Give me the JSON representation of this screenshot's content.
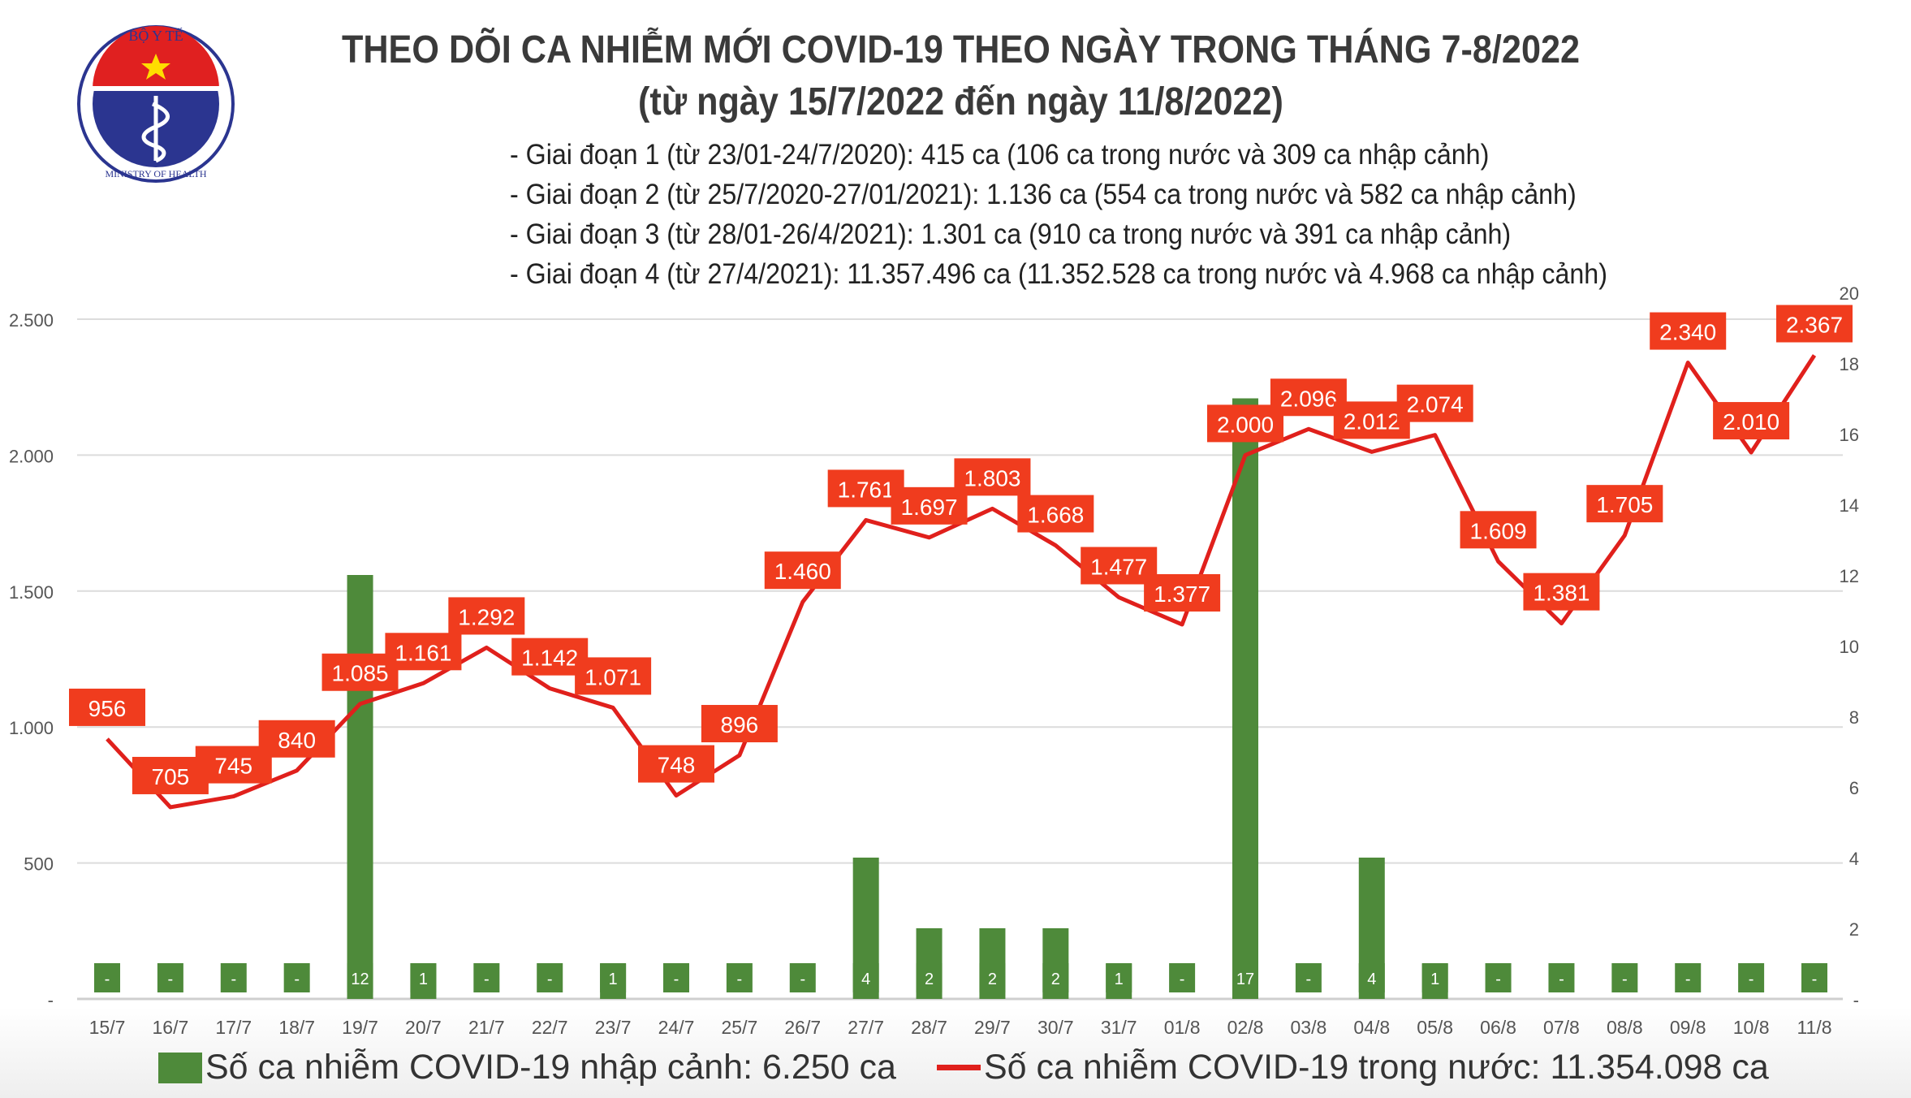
{
  "logo": {
    "text_top": "BỘ Y TẾ",
    "text_bottom": "MINISTRY OF HEALTH"
  },
  "title": "THEO DÕI CA NHIỄM MỚI COVID-19 THEO NGÀY TRONG THÁNG 7-8/2022",
  "subtitle": "(từ ngày 15/7/2022 đến ngày 11/8/2022)",
  "phases": [
    "- Giai đoạn 1 (từ 23/01-24/7/2020): 415 ca (106 ca trong nước và 309 ca nhập cảnh)",
    "- Giai đoạn 2 (từ 25/7/2020-27/01/2021): 1.136 ca (554 ca trong nước và 582 ca nhập cảnh)",
    "- Giai đoạn 3 (từ 28/01-26/4/2021): 1.301 ca (910 ca trong nước và 391 ca nhập cảnh)",
    "- Giai đoạn 4 (từ 27/4/2021): 11.357.496 ca (11.352.528 ca trong nước và 4.968 ca nhập cảnh)"
  ],
  "chart_data": {
    "type": "bar+line",
    "categories": [
      "15/7",
      "16/7",
      "17/7",
      "18/7",
      "19/7",
      "20/7",
      "21/7",
      "22/7",
      "23/7",
      "24/7",
      "25/7",
      "26/7",
      "27/7",
      "28/7",
      "29/7",
      "30/7",
      "31/7",
      "01/8",
      "02/8",
      "03/8",
      "04/8",
      "05/8",
      "06/8",
      "07/8",
      "08/8",
      "09/8",
      "10/8",
      "11/8"
    ],
    "series": [
      {
        "name": "Số ca nhiễm COVID-19 nhập cảnh: 6.250 ca",
        "type": "bar",
        "axis": "right",
        "color": "#4e8a3a",
        "values": [
          0,
          0,
          0,
          0,
          12,
          1,
          0,
          0,
          1,
          0,
          0,
          0,
          4,
          2,
          2,
          2,
          1,
          0,
          17,
          0,
          4,
          1,
          0,
          0,
          0,
          0,
          0,
          0
        ],
        "labels": [
          "-",
          "-",
          "-",
          "-",
          "12",
          "1",
          "-",
          "-",
          "1",
          "-",
          "-",
          "-",
          "4",
          "2",
          "2",
          "2",
          "1",
          "-",
          "17",
          "-",
          "4",
          "1",
          "-",
          "-",
          "-",
          "-",
          "-",
          "-"
        ]
      },
      {
        "name": "Số ca nhiễm COVID-19 trong nước: 11.354.098 ca",
        "type": "line",
        "axis": "left",
        "color": "#e0201c",
        "label_color": "#f03c1e",
        "values": [
          956,
          705,
          745,
          840,
          1085,
          1161,
          1292,
          1142,
          1071,
          748,
          896,
          1460,
          1761,
          1697,
          1803,
          1668,
          1477,
          1377,
          2000,
          2096,
          2012,
          2074,
          1609,
          1381,
          1705,
          2340,
          2010,
          2367
        ],
        "labels": [
          "956",
          "705",
          "745",
          "840",
          "1.085",
          "1.161",
          "1.292",
          "1.142",
          "1.071",
          "748",
          "896",
          "1.460",
          "1.761",
          "1.697",
          "1.803",
          "1.668",
          "1.477",
          "1.377",
          "2.000",
          "2.096",
          "2.012",
          "2.074",
          "1.609",
          "1.381",
          "1.705",
          "2.340",
          "2.010",
          "2.367"
        ]
      }
    ],
    "y_left": {
      "range": [
        0,
        2500
      ],
      "ticks": [
        "-",
        "500",
        "1.000",
        "1.500",
        "2.000",
        "2.500"
      ]
    },
    "y_right": {
      "range": [
        0,
        20
      ],
      "ticks": [
        "-",
        "2",
        "4",
        "6",
        "8",
        "10",
        "12",
        "14",
        "16",
        "18",
        "20"
      ]
    },
    "grid": true,
    "legend": "bottom"
  }
}
